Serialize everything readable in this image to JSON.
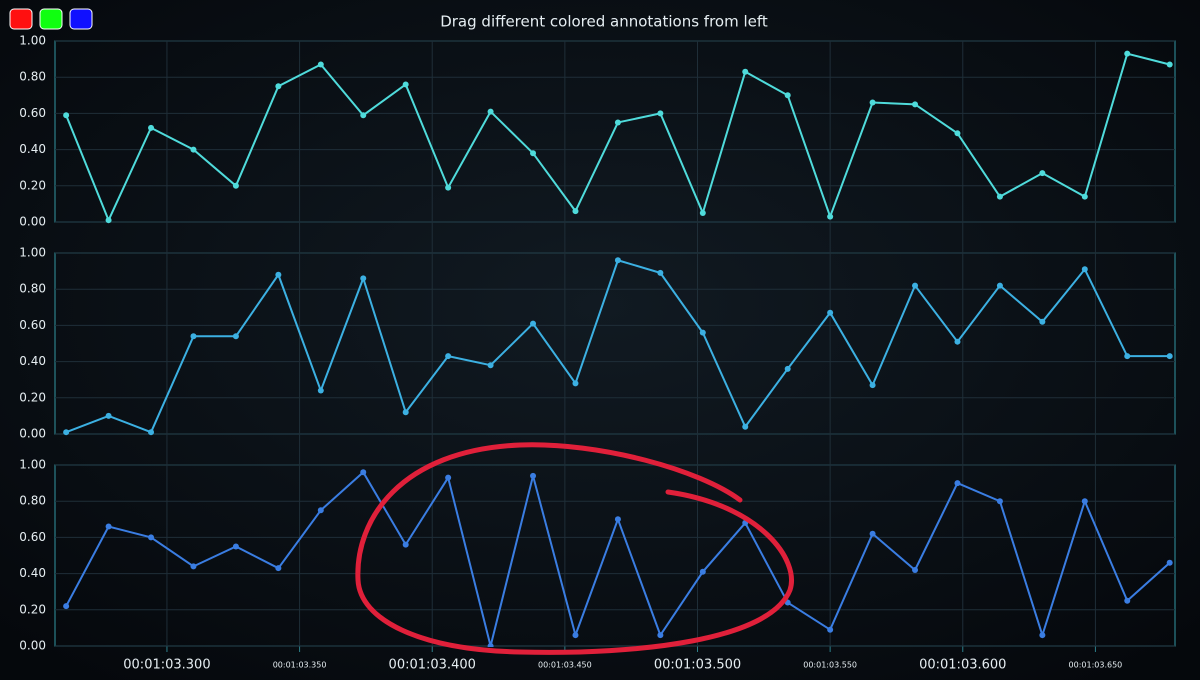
{
  "chart_data": {
    "type": "line",
    "title": "Drag different colored annotations from left",
    "x": [
      63.262,
      63.278,
      63.294,
      63.31,
      63.326,
      63.342,
      63.358,
      63.374,
      63.39,
      63.406,
      63.422,
      63.438,
      63.454,
      63.47,
      63.486,
      63.502,
      63.518,
      63.534,
      63.55,
      63.566,
      63.582,
      63.598,
      63.614,
      63.63,
      63.646,
      63.662,
      63.678
    ],
    "xlim": [
      63.2578,
      63.68
    ],
    "xticks": [
      {
        "value": 63.3,
        "label": "00:01:03.300"
      },
      {
        "value": 63.35,
        "label": "00:01:03.350"
      },
      {
        "value": 63.4,
        "label": "00:01:03.400"
      },
      {
        "value": 63.45,
        "label": "00:01:03.450"
      },
      {
        "value": 63.5,
        "label": "00:01:03.500"
      },
      {
        "value": 63.55,
        "label": "00:01:03.550"
      },
      {
        "value": 63.6,
        "label": "00:01:03.600"
      },
      {
        "value": 63.65,
        "label": "00:01:03.650"
      }
    ],
    "ylim": [
      0,
      1
    ],
    "yticks": [
      {
        "value": 0,
        "label": "0.00"
      },
      {
        "value": 0.2,
        "label": "0.20"
      },
      {
        "value": 0.4,
        "label": "0.40"
      },
      {
        "value": 0.6,
        "label": "0.60"
      },
      {
        "value": 0.8,
        "label": "0.80"
      },
      {
        "value": 1,
        "label": "1.00"
      }
    ],
    "grid": true,
    "series": [
      {
        "color": "#4fdbdb",
        "values": [
          0.59,
          0.01,
          0.52,
          0.4,
          0.2,
          0.75,
          0.87,
          0.59,
          0.76,
          0.19,
          0.61,
          0.38,
          0.06,
          0.55,
          0.6,
          0.05,
          0.83,
          0.7,
          0.03,
          0.66,
          0.65,
          0.49,
          0.14,
          0.27,
          0.14,
          0.93,
          0.87
        ]
      },
      {
        "color": "#3cb0e2",
        "values": [
          0.01,
          0.1,
          0.01,
          0.54,
          0.54,
          0.88,
          0.24,
          0.86,
          0.12,
          0.43,
          0.38,
          0.61,
          0.28,
          0.96,
          0.89,
          0.56,
          0.04,
          0.36,
          0.67,
          0.27,
          0.82,
          0.51,
          0.82,
          0.62,
          0.91,
          0.43,
          0.43
        ]
      },
      {
        "color": "#3a7de2",
        "values": [
          0.22,
          0.66,
          0.6,
          0.44,
          0.55,
          0.43,
          0.75,
          0.96,
          0.56,
          0.93,
          0.0,
          0.94,
          0.06,
          0.7,
          0.06,
          0.41,
          0.68,
          0.24,
          0.09,
          0.62,
          0.42,
          0.9,
          0.8,
          0.06,
          0.8,
          0.25,
          0.46
        ]
      }
    ]
  }
}
